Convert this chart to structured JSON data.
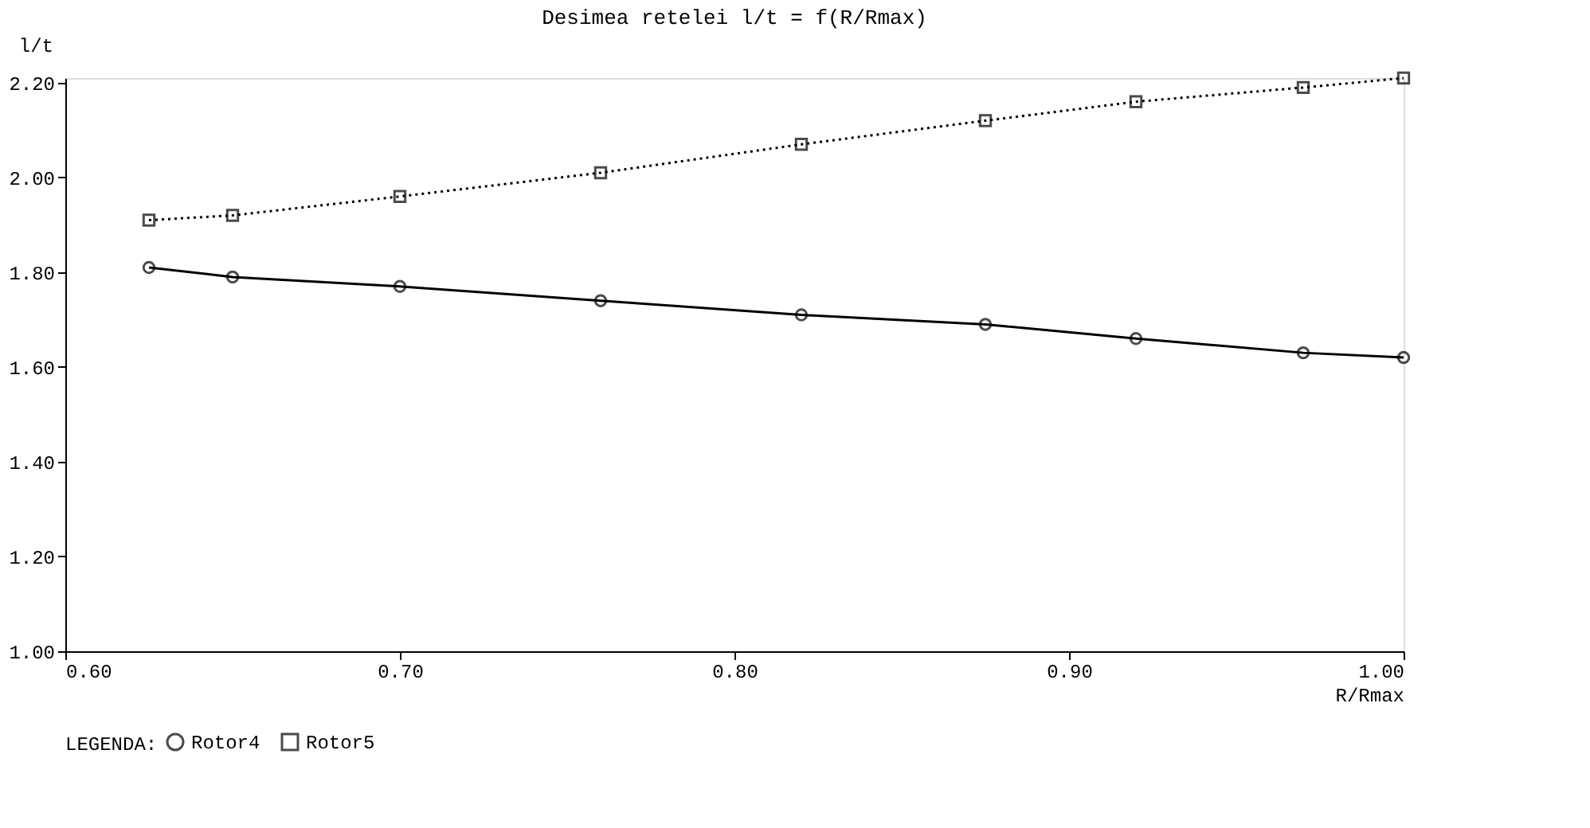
{
  "chart_data": {
    "type": "line",
    "title": "Desimea retelei l/t = f(R/Rmax)",
    "xlabel": "R/Rmax",
    "ylabel": "l/t",
    "legend_title": "LEGENDA:",
    "x": [
      0.625,
      0.65,
      0.7,
      0.76,
      0.82,
      0.875,
      0.92,
      0.97,
      1.0
    ],
    "series": [
      {
        "name": "Rotor4",
        "color": "#000000",
        "marker": "circle",
        "line_style": "solid",
        "values": [
          1.81,
          1.79,
          1.77,
          1.74,
          1.71,
          1.69,
          1.66,
          1.63,
          1.62
        ]
      },
      {
        "name": "Rotor5",
        "color": "#000000",
        "marker": "square",
        "line_style": "dotted",
        "values": [
          1.91,
          1.92,
          1.96,
          2.01,
          2.07,
          2.12,
          2.16,
          2.19,
          2.21
        ]
      }
    ],
    "xlim": [
      0.6,
      1.0
    ],
    "xticks": [
      {
        "value": 0.6,
        "label": "0.60"
      },
      {
        "value": 0.7,
        "label": "0.70"
      },
      {
        "value": 0.8,
        "label": "0.80"
      },
      {
        "value": 0.9,
        "label": "0.90"
      },
      {
        "value": 1.0,
        "label": "1.00"
      }
    ],
    "ylim": [
      1.0,
      2.21
    ],
    "yticks": [
      {
        "value": 1.0,
        "label": "1.00"
      },
      {
        "value": 1.2,
        "label": "1.20"
      },
      {
        "value": 1.4,
        "label": "1.40"
      },
      {
        "value": 1.6,
        "label": "1.60"
      },
      {
        "value": 1.8,
        "label": "1.80"
      },
      {
        "value": 2.0,
        "label": "2.00"
      },
      {
        "value": 2.2,
        "label": "2.20"
      }
    ],
    "grid": false,
    "legend": "bottom left"
  }
}
